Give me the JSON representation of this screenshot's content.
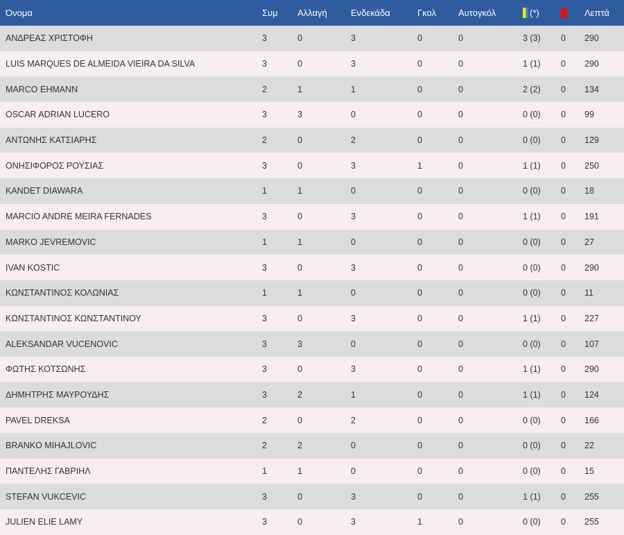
{
  "columns": {
    "name": "Όνομα",
    "apps": "Συμ",
    "subs": "Αλλαγή",
    "starts": "Ενδεκάδα",
    "goals": "Γκολ",
    "own_goals": "Αυτογκόλ",
    "yellow_suffix": "(*)",
    "minutes": "Λεπτά"
  },
  "icons": {
    "yellow_card": "yellow-card-icon",
    "red_card": "red-card-icon"
  },
  "colors": {
    "header_bg": "#2e5b9e",
    "row_odd": "#dcdcdc",
    "row_even": "#f8eef0",
    "yellow_card": "#f5e400",
    "red_card": "#e01010"
  },
  "rows": [
    {
      "name": "ΑΝΔΡΕΑΣ ΧΡΙΣΤΟΦΗ",
      "apps": "3",
      "subs": "0",
      "starts": "3",
      "goals": "0",
      "own": "0",
      "yellow": "3 (3)",
      "red": "0",
      "min": "290"
    },
    {
      "name": "LUIS MARQUES DE ALMEIDA VIEIRA DA SILVA",
      "apps": "3",
      "subs": "0",
      "starts": "3",
      "goals": "0",
      "own": "0",
      "yellow": "1 (1)",
      "red": "0",
      "min": "290"
    },
    {
      "name": "MARCO EHMANN",
      "apps": "2",
      "subs": "1",
      "starts": "1",
      "goals": "0",
      "own": "0",
      "yellow": "2 (2)",
      "red": "0",
      "min": "134"
    },
    {
      "name": "OSCAR ADRIAN LUCERO",
      "apps": "3",
      "subs": "3",
      "starts": "0",
      "goals": "0",
      "own": "0",
      "yellow": "0 (0)",
      "red": "0",
      "min": "99"
    },
    {
      "name": "ΑΝΤΩΝΗΣ ΚΑΤΣΙΑΡΗΣ",
      "apps": "2",
      "subs": "0",
      "starts": "2",
      "goals": "0",
      "own": "0",
      "yellow": "0 (0)",
      "red": "0",
      "min": "129"
    },
    {
      "name": "ΟΝΗΣΙΦΟΡΟΣ ΡΟΥΣΙΑΣ",
      "apps": "3",
      "subs": "0",
      "starts": "3",
      "goals": "1",
      "own": "0",
      "yellow": "1 (1)",
      "red": "0",
      "min": "250"
    },
    {
      "name": "KANDET DIAWARA",
      "apps": "1",
      "subs": "1",
      "starts": "0",
      "goals": "0",
      "own": "0",
      "yellow": "0 (0)",
      "red": "0",
      "min": "18"
    },
    {
      "name": "MARCIO ANDRE MEIRA FERNADES",
      "apps": "3",
      "subs": "0",
      "starts": "3",
      "goals": "0",
      "own": "0",
      "yellow": "1 (1)",
      "red": "0",
      "min": "191"
    },
    {
      "name": "MARKO JEVREMOVIC",
      "apps": "1",
      "subs": "1",
      "starts": "0",
      "goals": "0",
      "own": "0",
      "yellow": "0 (0)",
      "red": "0",
      "min": "27"
    },
    {
      "name": "IVAN KOSTIC",
      "apps": "3",
      "subs": "0",
      "starts": "3",
      "goals": "0",
      "own": "0",
      "yellow": "0 (0)",
      "red": "0",
      "min": "290"
    },
    {
      "name": "ΚΩΝΣΤΑΝΤΙΝΟΣ ΚΟΛΩΝΙΑΣ",
      "apps": "1",
      "subs": "1",
      "starts": "0",
      "goals": "0",
      "own": "0",
      "yellow": "0 (0)",
      "red": "0",
      "min": "11"
    },
    {
      "name": "ΚΩΝΣΤΑΝΤΙΝΟΣ ΚΩΝΣΤΑΝΤΙΝΟΥ",
      "apps": "3",
      "subs": "0",
      "starts": "3",
      "goals": "0",
      "own": "0",
      "yellow": "1 (1)",
      "red": "0",
      "min": "227"
    },
    {
      "name": "ALEKSANDAR VUCENOVIC",
      "apps": "3",
      "subs": "3",
      "starts": "0",
      "goals": "0",
      "own": "0",
      "yellow": "0 (0)",
      "red": "0",
      "min": "107"
    },
    {
      "name": "ΦΩΤΗΣ ΚΟΤΣΩΝΗΣ",
      "apps": "3",
      "subs": "0",
      "starts": "3",
      "goals": "0",
      "own": "0",
      "yellow": "1 (1)",
      "red": "0",
      "min": "290"
    },
    {
      "name": "ΔΗΜΗΤΡΗΣ ΜΑΥΡΟΥΔΗΣ",
      "apps": "3",
      "subs": "2",
      "starts": "1",
      "goals": "0",
      "own": "0",
      "yellow": "1 (1)",
      "red": "0",
      "min": "124"
    },
    {
      "name": "PAVEL DREKSA",
      "apps": "2",
      "subs": "0",
      "starts": "2",
      "goals": "0",
      "own": "0",
      "yellow": "0 (0)",
      "red": "0",
      "min": "166"
    },
    {
      "name": "BRANKO MIHAJLOVIC",
      "apps": "2",
      "subs": "2",
      "starts": "0",
      "goals": "0",
      "own": "0",
      "yellow": "0 (0)",
      "red": "0",
      "min": "22"
    },
    {
      "name": "ΠΑΝΤΕΛΗΣ ΓΑΒΡΙΗΛ",
      "apps": "1",
      "subs": "1",
      "starts": "0",
      "goals": "0",
      "own": "0",
      "yellow": "0 (0)",
      "red": "0",
      "min": "15"
    },
    {
      "name": "STEFAN VUKCEVIC",
      "apps": "3",
      "subs": "0",
      "starts": "3",
      "goals": "0",
      "own": "0",
      "yellow": "1 (1)",
      "red": "0",
      "min": "255"
    },
    {
      "name": "JULIEN ELIE LAMY",
      "apps": "3",
      "subs": "0",
      "starts": "3",
      "goals": "1",
      "own": "0",
      "yellow": "0 (0)",
      "red": "0",
      "min": "255"
    }
  ]
}
